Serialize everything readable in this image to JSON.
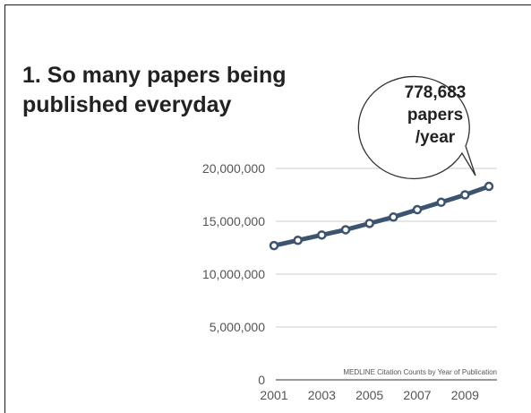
{
  "slide": {
    "title_line1": "1. So many papers being",
    "title_line2": "published everyday",
    "callout": [
      "778,683",
      "papers",
      "/year"
    ]
  },
  "colors": {
    "line": "#3c5470",
    "marker_fill": "#ffffff",
    "grid": "#cccccc",
    "axis": "#333333"
  },
  "chart_data": {
    "type": "line",
    "title": "",
    "note": "MEDLINE Citation Counts by Year of Publication",
    "xlabel": "",
    "ylabel": "",
    "x": [
      2001,
      2002,
      2003,
      2004,
      2005,
      2006,
      2007,
      2008,
      2009,
      2010
    ],
    "x_tick_labels": [
      "2001",
      "2003",
      "2005",
      "2007",
      "2009"
    ],
    "x_tick_values": [
      2001,
      2003,
      2005,
      2007,
      2009
    ],
    "xlim": [
      2001,
      2010
    ],
    "y_tick_labels": [
      "0",
      "5,000,000",
      "10,000,000",
      "15,000,000",
      "20,000,000"
    ],
    "y_tick_values": [
      0,
      5000000,
      10000000,
      15000000,
      20000000
    ],
    "ylim": [
      0,
      20000000
    ],
    "grid": true,
    "series": [
      {
        "values": [
          12700000,
          13200000,
          13700000,
          14200000,
          14800000,
          15400000,
          16100000,
          16800000,
          17500000,
          18300000
        ]
      }
    ]
  }
}
